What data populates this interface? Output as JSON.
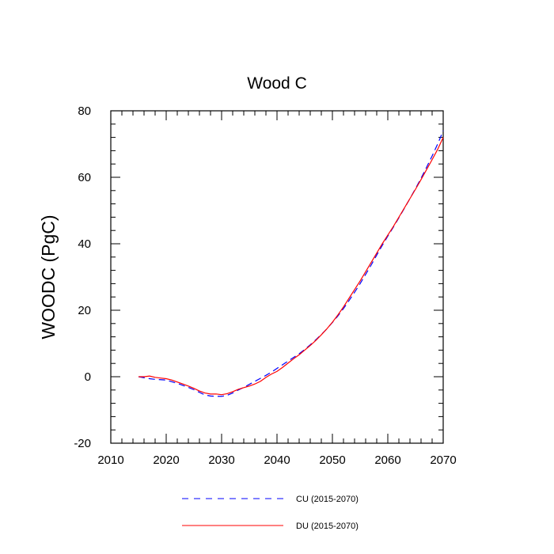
{
  "chart_data": {
    "type": "line",
    "title": "Wood C",
    "xlabel": "",
    "ylabel": "WOODC  (PgC)",
    "xlim": [
      2010,
      2070
    ],
    "ylim": [
      -20,
      80
    ],
    "xticks": [
      2010,
      2020,
      2030,
      2040,
      2050,
      2060,
      2070
    ],
    "yticks": [
      -20,
      0,
      20,
      40,
      60,
      80
    ],
    "legend_position": "bottom",
    "series": [
      {
        "name": "CU (2015-2070)",
        "color": "#0000ff",
        "style": "dashed",
        "x": [
          2015,
          2016,
          2017,
          2018,
          2019,
          2020,
          2021,
          2022,
          2023,
          2024,
          2025,
          2026,
          2027,
          2028,
          2029,
          2030,
          2031,
          2032,
          2033,
          2034,
          2035,
          2036,
          2037,
          2038,
          2039,
          2040,
          2041,
          2042,
          2043,
          2044,
          2045,
          2046,
          2047,
          2048,
          2049,
          2050,
          2051,
          2052,
          2053,
          2054,
          2055,
          2056,
          2057,
          2058,
          2059,
          2060,
          2061,
          2062,
          2063,
          2064,
          2065,
          2066,
          2067,
          2068,
          2069,
          2070
        ],
        "y": [
          0.0,
          -0.3,
          -0.6,
          -0.8,
          -0.9,
          -1.0,
          -1.5,
          -2.0,
          -2.6,
          -3.2,
          -3.9,
          -4.7,
          -5.5,
          -5.8,
          -5.9,
          -5.9,
          -5.6,
          -4.9,
          -4.0,
          -3.2,
          -2.3,
          -1.4,
          -0.5,
          0.4,
          1.4,
          2.5,
          3.6,
          4.7,
          5.8,
          6.9,
          8.2,
          9.6,
          11.1,
          12.7,
          14.4,
          16.3,
          18.3,
          20.5,
          22.9,
          25.4,
          28.0,
          30.8,
          33.6,
          36.6,
          39.5,
          42.3,
          45.0,
          47.8,
          50.7,
          53.6,
          56.6,
          59.7,
          63.0,
          66.4,
          70.0,
          74.0
        ]
      },
      {
        "name": "DU (2015-2070)",
        "color": "#ff0000",
        "style": "solid",
        "x": [
          2015,
          2016,
          2017,
          2018,
          2019,
          2020,
          2021,
          2022,
          2023,
          2024,
          2025,
          2026,
          2027,
          2028,
          2029,
          2030,
          2031,
          2032,
          2033,
          2034,
          2035,
          2036,
          2037,
          2038,
          2039,
          2040,
          2041,
          2042,
          2043,
          2044,
          2045,
          2046,
          2047,
          2048,
          2049,
          2050,
          2051,
          2052,
          2053,
          2054,
          2055,
          2056,
          2057,
          2058,
          2059,
          2060,
          2061,
          2062,
          2063,
          2064,
          2065,
          2066,
          2067,
          2068,
          2069,
          2070
        ],
        "y": [
          0.0,
          0.0,
          0.2,
          -0.2,
          -0.4,
          -0.6,
          -1.0,
          -1.6,
          -2.2,
          -2.8,
          -3.5,
          -4.3,
          -4.9,
          -5.2,
          -5.2,
          -5.4,
          -5.1,
          -4.5,
          -3.8,
          -3.3,
          -2.8,
          -2.2,
          -1.4,
          -0.2,
          0.8,
          1.6,
          2.8,
          4.1,
          5.4,
          6.6,
          8.0,
          9.4,
          10.9,
          12.6,
          14.4,
          16.4,
          18.6,
          21.0,
          23.6,
          26.2,
          28.8,
          31.6,
          34.4,
          37.2,
          40.0,
          42.6,
          45.2,
          48.0,
          50.8,
          53.6,
          56.4,
          59.3,
          62.3,
          65.3,
          68.4,
          72.0
        ]
      }
    ]
  }
}
